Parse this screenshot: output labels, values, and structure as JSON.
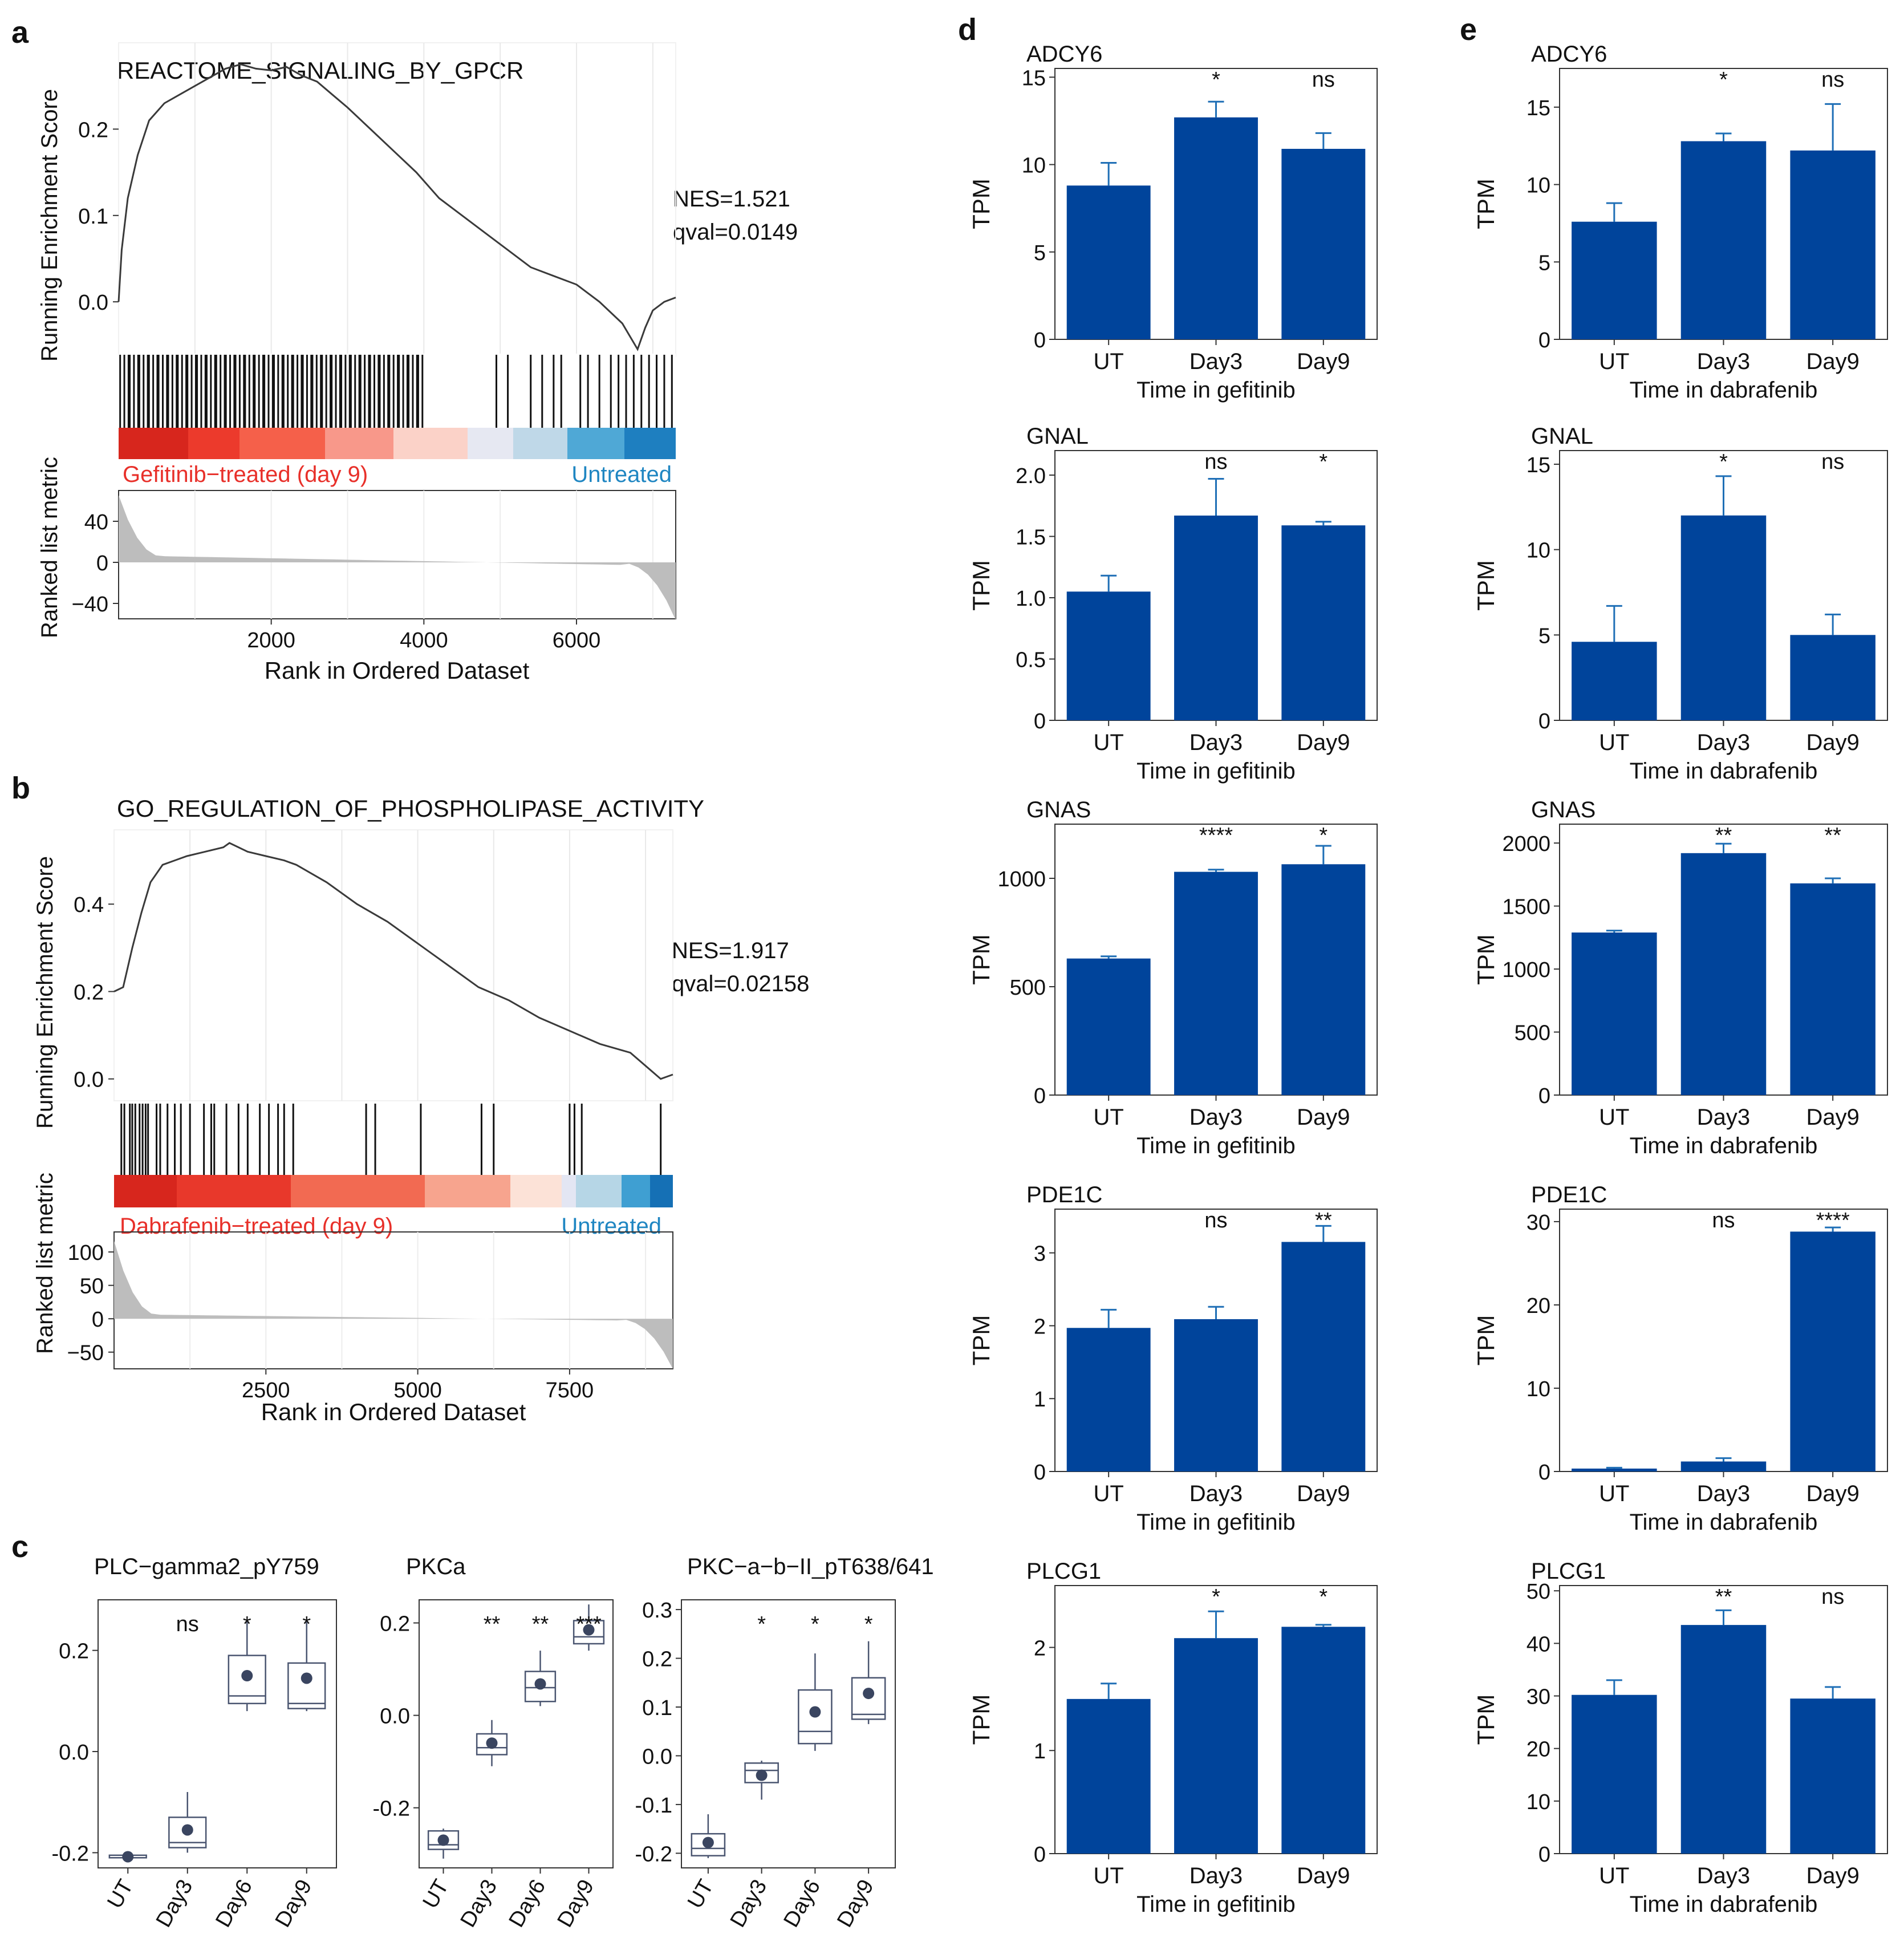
{
  "figure": {
    "colors": {
      "bar": "#00449B",
      "bar_err": "#1F6FB6",
      "box": "#4A5570",
      "gsea_red": "#E8302A",
      "gsea_blue": "#1F86C2",
      "gray_fill": "#BDBDBD"
    }
  },
  "panels": {
    "a": {
      "letter": "a",
      "title": "REACTOME_SIGNALING_BY_GPCR",
      "nes": "NES=1.521",
      "qval": "qval=0.0149",
      "label_left": "Gefitinib−treated (day 9)",
      "label_right": "Untreated",
      "ylabel_top": "Running Enrichment Score",
      "ylabel_bottom": "Ranked list metric",
      "xlabel": "Rank in Ordered Dataset"
    },
    "b": {
      "letter": "b",
      "title": "GO_REGULATION_OF_PHOSPHOLIPASE_ACTIVITY",
      "nes": "NES=1.917",
      "qval": "qval=0.02158",
      "label_left": "Dabrafenib−treated (day 9)",
      "label_right": "Untreated",
      "ylabel_top": "Running Enrichment Score",
      "ylabel_bottom": "Ranked list metric",
      "xlabel": "Rank in Ordered Dataset"
    },
    "c": {
      "letter": "c"
    },
    "d": {
      "letter": "d"
    },
    "e": {
      "letter": "e"
    }
  },
  "chart_data": [
    {
      "id": "a",
      "type": "line",
      "title": "REACTOME_SIGNALING_BY_GPCR",
      "xlabel": "Rank in Ordered Dataset",
      "ylabel": "Running Enrichment Score",
      "xlim": [
        0,
        7300
      ],
      "ylim": [
        -0.06,
        0.3
      ],
      "xticks": [
        "2000",
        "4000",
        "6000"
      ],
      "xtick_values": [
        2000,
        4000,
        6000
      ],
      "yticks": [
        "0.0",
        "0.1",
        "0.2"
      ],
      "ytick_values": [
        0.0,
        0.1,
        0.2
      ],
      "es_curve": {
        "x": [
          0,
          40,
          120,
          250,
          400,
          600,
          800,
          1000,
          1200,
          1400,
          1600,
          1800,
          2000,
          2200,
          2400,
          2600,
          2800,
          3000,
          3300,
          3600,
          3900,
          4200,
          4500,
          4800,
          5100,
          5400,
          5700,
          6000,
          6300,
          6600,
          6800,
          6900,
          7000,
          7150,
          7300
        ],
        "y": [
          0.0,
          0.06,
          0.12,
          0.17,
          0.21,
          0.23,
          0.24,
          0.25,
          0.26,
          0.27,
          0.275,
          0.27,
          0.268,
          0.272,
          0.262,
          0.255,
          0.24,
          0.225,
          0.2,
          0.175,
          0.15,
          0.12,
          0.1,
          0.08,
          0.06,
          0.04,
          0.03,
          0.02,
          0.0,
          -0.025,
          -0.055,
          -0.03,
          -0.01,
          0.0,
          0.005
        ]
      },
      "ranked_metric": {
        "ylim": [
          -55,
          70
        ],
        "yticks": [
          "40",
          "0",
          "−40"
        ],
        "ytick_values": [
          40,
          0,
          -40
        ]
      }
    },
    {
      "id": "b",
      "type": "line",
      "title": "GO_REGULATION_OF_PHOSPHOLIPASE_ACTIVITY",
      "xlabel": "Rank in Ordered Dataset",
      "ylabel": "Running Enrichment Score",
      "xlim": [
        0,
        9200
      ],
      "ylim": [
        -0.05,
        0.57
      ],
      "xticks": [
        "2500",
        "5000",
        "7500"
      ],
      "xtick_values": [
        2500,
        5000,
        7500
      ],
      "yticks": [
        "0.0",
        "0.2",
        "0.4"
      ],
      "ytick_values": [
        0.0,
        0.2,
        0.4
      ],
      "es_curve": {
        "x": [
          0,
          150,
          300,
          450,
          600,
          800,
          1000,
          1200,
          1500,
          1800,
          1900,
          2200,
          2500,
          2800,
          3000,
          3500,
          4000,
          4500,
          5000,
          5500,
          6000,
          6500,
          7000,
          7500,
          8000,
          8500,
          9000,
          9200
        ],
        "y": [
          0.2,
          0.21,
          0.3,
          0.38,
          0.45,
          0.49,
          0.5,
          0.51,
          0.52,
          0.53,
          0.54,
          0.52,
          0.51,
          0.5,
          0.49,
          0.45,
          0.4,
          0.36,
          0.31,
          0.26,
          0.21,
          0.18,
          0.14,
          0.11,
          0.08,
          0.06,
          0.0,
          0.01
        ]
      },
      "ranked_metric": {
        "ylim": [
          -75,
          130
        ],
        "yticks": [
          "100",
          "50",
          "0",
          "−50"
        ],
        "ytick_values": [
          100,
          50,
          0,
          -50
        ]
      }
    },
    {
      "id": "c1",
      "type": "box",
      "title": "PLC−gamma2_pY759",
      "categories": [
        "UT",
        "Day3",
        "Day6",
        "Day9"
      ],
      "ylim": [
        -0.23,
        0.3
      ],
      "yticks": [
        "-0.2",
        "0.0",
        "0.2"
      ],
      "ytick_values": [
        -0.2,
        0.0,
        0.2
      ],
      "boxes": [
        {
          "min": -0.21,
          "q1": -0.21,
          "median": -0.21,
          "q3": -0.205,
          "max": -0.205,
          "mean": -0.208
        },
        {
          "min": -0.2,
          "q1": -0.19,
          "median": -0.18,
          "q3": -0.13,
          "max": -0.08,
          "mean": -0.155
        },
        {
          "min": 0.08,
          "q1": 0.095,
          "median": 0.11,
          "q3": 0.19,
          "max": 0.26,
          "mean": 0.15
        },
        {
          "min": 0.08,
          "q1": 0.085,
          "median": 0.095,
          "q3": 0.175,
          "max": 0.26,
          "mean": 0.145
        }
      ],
      "significance": [
        "",
        "ns",
        "*",
        "*"
      ]
    },
    {
      "id": "c2",
      "type": "box",
      "title": "PKCa",
      "categories": [
        "UT",
        "Day3",
        "Day6",
        "Day9"
      ],
      "ylim": [
        -0.33,
        0.25
      ],
      "yticks": [
        "-0.2",
        "0.0",
        "0.2"
      ],
      "ytick_values": [
        -0.2,
        0.0,
        0.2
      ],
      "boxes": [
        {
          "min": -0.31,
          "q1": -0.29,
          "median": -0.28,
          "q3": -0.25,
          "max": -0.245,
          "mean": -0.27
        },
        {
          "min": -0.11,
          "q1": -0.085,
          "median": -0.07,
          "q3": -0.04,
          "max": -0.01,
          "mean": -0.06
        },
        {
          "min": 0.02,
          "q1": 0.03,
          "median": 0.06,
          "q3": 0.095,
          "max": 0.14,
          "mean": 0.068
        },
        {
          "min": 0.14,
          "q1": 0.155,
          "median": 0.17,
          "q3": 0.205,
          "max": 0.24,
          "mean": 0.185
        }
      ],
      "significance": [
        "",
        "**",
        "**",
        "***"
      ]
    },
    {
      "id": "c3",
      "type": "box",
      "title": "PKC−a−b−II_pT638/641",
      "categories": [
        "UT",
        "Day3",
        "Day6",
        "Day9"
      ],
      "ylim": [
        -0.23,
        0.32
      ],
      "yticks": [
        "-0.2",
        "-0.1",
        "0.0",
        "0.1",
        "0.2",
        "0.3"
      ],
      "ytick_values": [
        -0.2,
        -0.1,
        0.0,
        0.1,
        0.2,
        0.3
      ],
      "boxes": [
        {
          "min": -0.21,
          "q1": -0.205,
          "median": -0.19,
          "q3": -0.16,
          "max": -0.12,
          "mean": -0.178
        },
        {
          "min": -0.09,
          "q1": -0.055,
          "median": -0.03,
          "q3": -0.015,
          "max": -0.01,
          "mean": -0.04
        },
        {
          "min": 0.01,
          "q1": 0.025,
          "median": 0.05,
          "q3": 0.135,
          "max": 0.21,
          "mean": 0.09
        },
        {
          "min": 0.065,
          "q1": 0.075,
          "median": 0.085,
          "q3": 0.16,
          "max": 0.235,
          "mean": 0.128
        }
      ],
      "significance": [
        "",
        "*",
        "*",
        "*"
      ]
    },
    {
      "id": "d1",
      "type": "bar",
      "title": "ADCY6",
      "categories": [
        "UT",
        "Day3",
        "Day9"
      ],
      "values": [
        8.8,
        12.7,
        10.9
      ],
      "errors": [
        1.3,
        0.9,
        0.9
      ],
      "xlabel": "Time in gefitinib",
      "ylabel": "TPM",
      "ylim": [
        0,
        15.5
      ],
      "yticks": [
        "0",
        "5",
        "10",
        "15"
      ],
      "ytick_values": [
        0,
        5,
        10,
        15
      ],
      "significance": [
        "",
        "*",
        "ns"
      ]
    },
    {
      "id": "d2",
      "type": "bar",
      "title": "GNAL",
      "categories": [
        "UT",
        "Day3",
        "Day9"
      ],
      "values": [
        1.05,
        1.67,
        1.59
      ],
      "errors": [
        0.13,
        0.3,
        0.03
      ],
      "xlabel": "Time in gefitinib",
      "ylabel": "TPM",
      "ylim": [
        0,
        2.2
      ],
      "yticks": [
        "0",
        "0.5",
        "1.0",
        "1.5",
        "2.0"
      ],
      "ytick_values": [
        0,
        0.5,
        1.0,
        1.5,
        2.0
      ],
      "significance": [
        "",
        "ns",
        "*"
      ]
    },
    {
      "id": "d3",
      "type": "bar",
      "title": "GNAS",
      "categories": [
        "UT",
        "Day3",
        "Day9"
      ],
      "values": [
        630,
        1030,
        1065
      ],
      "errors": [
        10,
        10,
        85
      ],
      "xlabel": "Time in gefitinib",
      "ylabel": "TPM",
      "ylim": [
        0,
        1250
      ],
      "yticks": [
        "0",
        "500",
        "1000"
      ],
      "ytick_values": [
        0,
        500,
        1000
      ],
      "significance": [
        "",
        "****",
        "*"
      ]
    },
    {
      "id": "d4",
      "type": "bar",
      "title": "PDE1C",
      "categories": [
        "UT",
        "Day3",
        "Day9"
      ],
      "values": [
        1.97,
        2.09,
        3.15
      ],
      "errors": [
        0.25,
        0.17,
        0.22
      ],
      "xlabel": "Time in gefitinib",
      "ylabel": "TPM",
      "ylim": [
        0,
        3.6
      ],
      "yticks": [
        "0",
        "1",
        "2",
        "3"
      ],
      "ytick_values": [
        0,
        1,
        2,
        3
      ],
      "significance": [
        "",
        "ns",
        "**"
      ]
    },
    {
      "id": "d5",
      "type": "bar",
      "title": "PLCG1",
      "categories": [
        "UT",
        "Day3",
        "Day9"
      ],
      "values": [
        1.5,
        2.09,
        2.2
      ],
      "errors": [
        0.15,
        0.26,
        0.02
      ],
      "xlabel": "Time in gefitinib",
      "ylabel": "TPM",
      "ylim": [
        0,
        2.6
      ],
      "yticks": [
        "0",
        "1",
        "2"
      ],
      "ytick_values": [
        0,
        1,
        2
      ],
      "significance": [
        "",
        "*",
        "*"
      ]
    },
    {
      "id": "e1",
      "type": "bar",
      "title": "ADCY6",
      "categories": [
        "UT",
        "Day3",
        "Day9"
      ],
      "values": [
        7.6,
        12.8,
        12.2
      ],
      "errors": [
        1.2,
        0.5,
        3.0
      ],
      "xlabel": "Time in dabrafenib",
      "ylabel": "TPM",
      "ylim": [
        0,
        17.5
      ],
      "yticks": [
        "0",
        "5",
        "10",
        "15"
      ],
      "ytick_values": [
        0,
        5,
        10,
        15
      ],
      "significance": [
        "",
        "*",
        "ns"
      ]
    },
    {
      "id": "e2",
      "type": "bar",
      "title": "GNAL",
      "categories": [
        "UT",
        "Day3",
        "Day9"
      ],
      "values": [
        4.6,
        12.0,
        5.0
      ],
      "errors": [
        2.1,
        2.3,
        1.2
      ],
      "xlabel": "Time in dabrafenib",
      "ylabel": "TPM",
      "ylim": [
        0,
        15.8
      ],
      "yticks": [
        "0",
        "5",
        "10",
        "15"
      ],
      "ytick_values": [
        0,
        5,
        10,
        15
      ],
      "significance": [
        "",
        "*",
        "ns"
      ]
    },
    {
      "id": "e3",
      "type": "bar",
      "title": "GNAS",
      "categories": [
        "UT",
        "Day3",
        "Day9"
      ],
      "values": [
        1290,
        1920,
        1680
      ],
      "errors": [
        15,
        75,
        40
      ],
      "xlabel": "Time in dabrafenib",
      "ylabel": "TPM",
      "ylim": [
        0,
        2150
      ],
      "yticks": [
        "0",
        "500",
        "1000",
        "1500",
        "2000"
      ],
      "ytick_values": [
        0,
        500,
        1000,
        1500,
        2000
      ],
      "significance": [
        "",
        "**",
        "**"
      ]
    },
    {
      "id": "e4",
      "type": "bar",
      "title": "PDE1C",
      "categories": [
        "UT",
        "Day3",
        "Day9"
      ],
      "values": [
        0.35,
        1.2,
        28.8
      ],
      "errors": [
        0.1,
        0.4,
        0.5
      ],
      "xlabel": "Time in dabrafenib",
      "ylabel": "TPM",
      "ylim": [
        0,
        31.5
      ],
      "yticks": [
        "0",
        "10",
        "20",
        "30"
      ],
      "ytick_values": [
        0,
        10,
        20,
        30
      ],
      "significance": [
        "",
        "ns",
        "****"
      ]
    },
    {
      "id": "e5",
      "type": "bar",
      "title": "PLCG1",
      "categories": [
        "UT",
        "Day3",
        "Day9"
      ],
      "values": [
        30.2,
        43.5,
        29.5
      ],
      "errors": [
        2.8,
        2.8,
        2.2
      ],
      "xlabel": "Time in dabrafenib",
      "ylabel": "TPM",
      "ylim": [
        0,
        51
      ],
      "yticks": [
        "0",
        "10",
        "20",
        "30",
        "40",
        "50"
      ],
      "ytick_values": [
        0,
        10,
        20,
        30,
        40,
        50
      ],
      "significance": [
        "",
        "**",
        "ns"
      ]
    }
  ]
}
